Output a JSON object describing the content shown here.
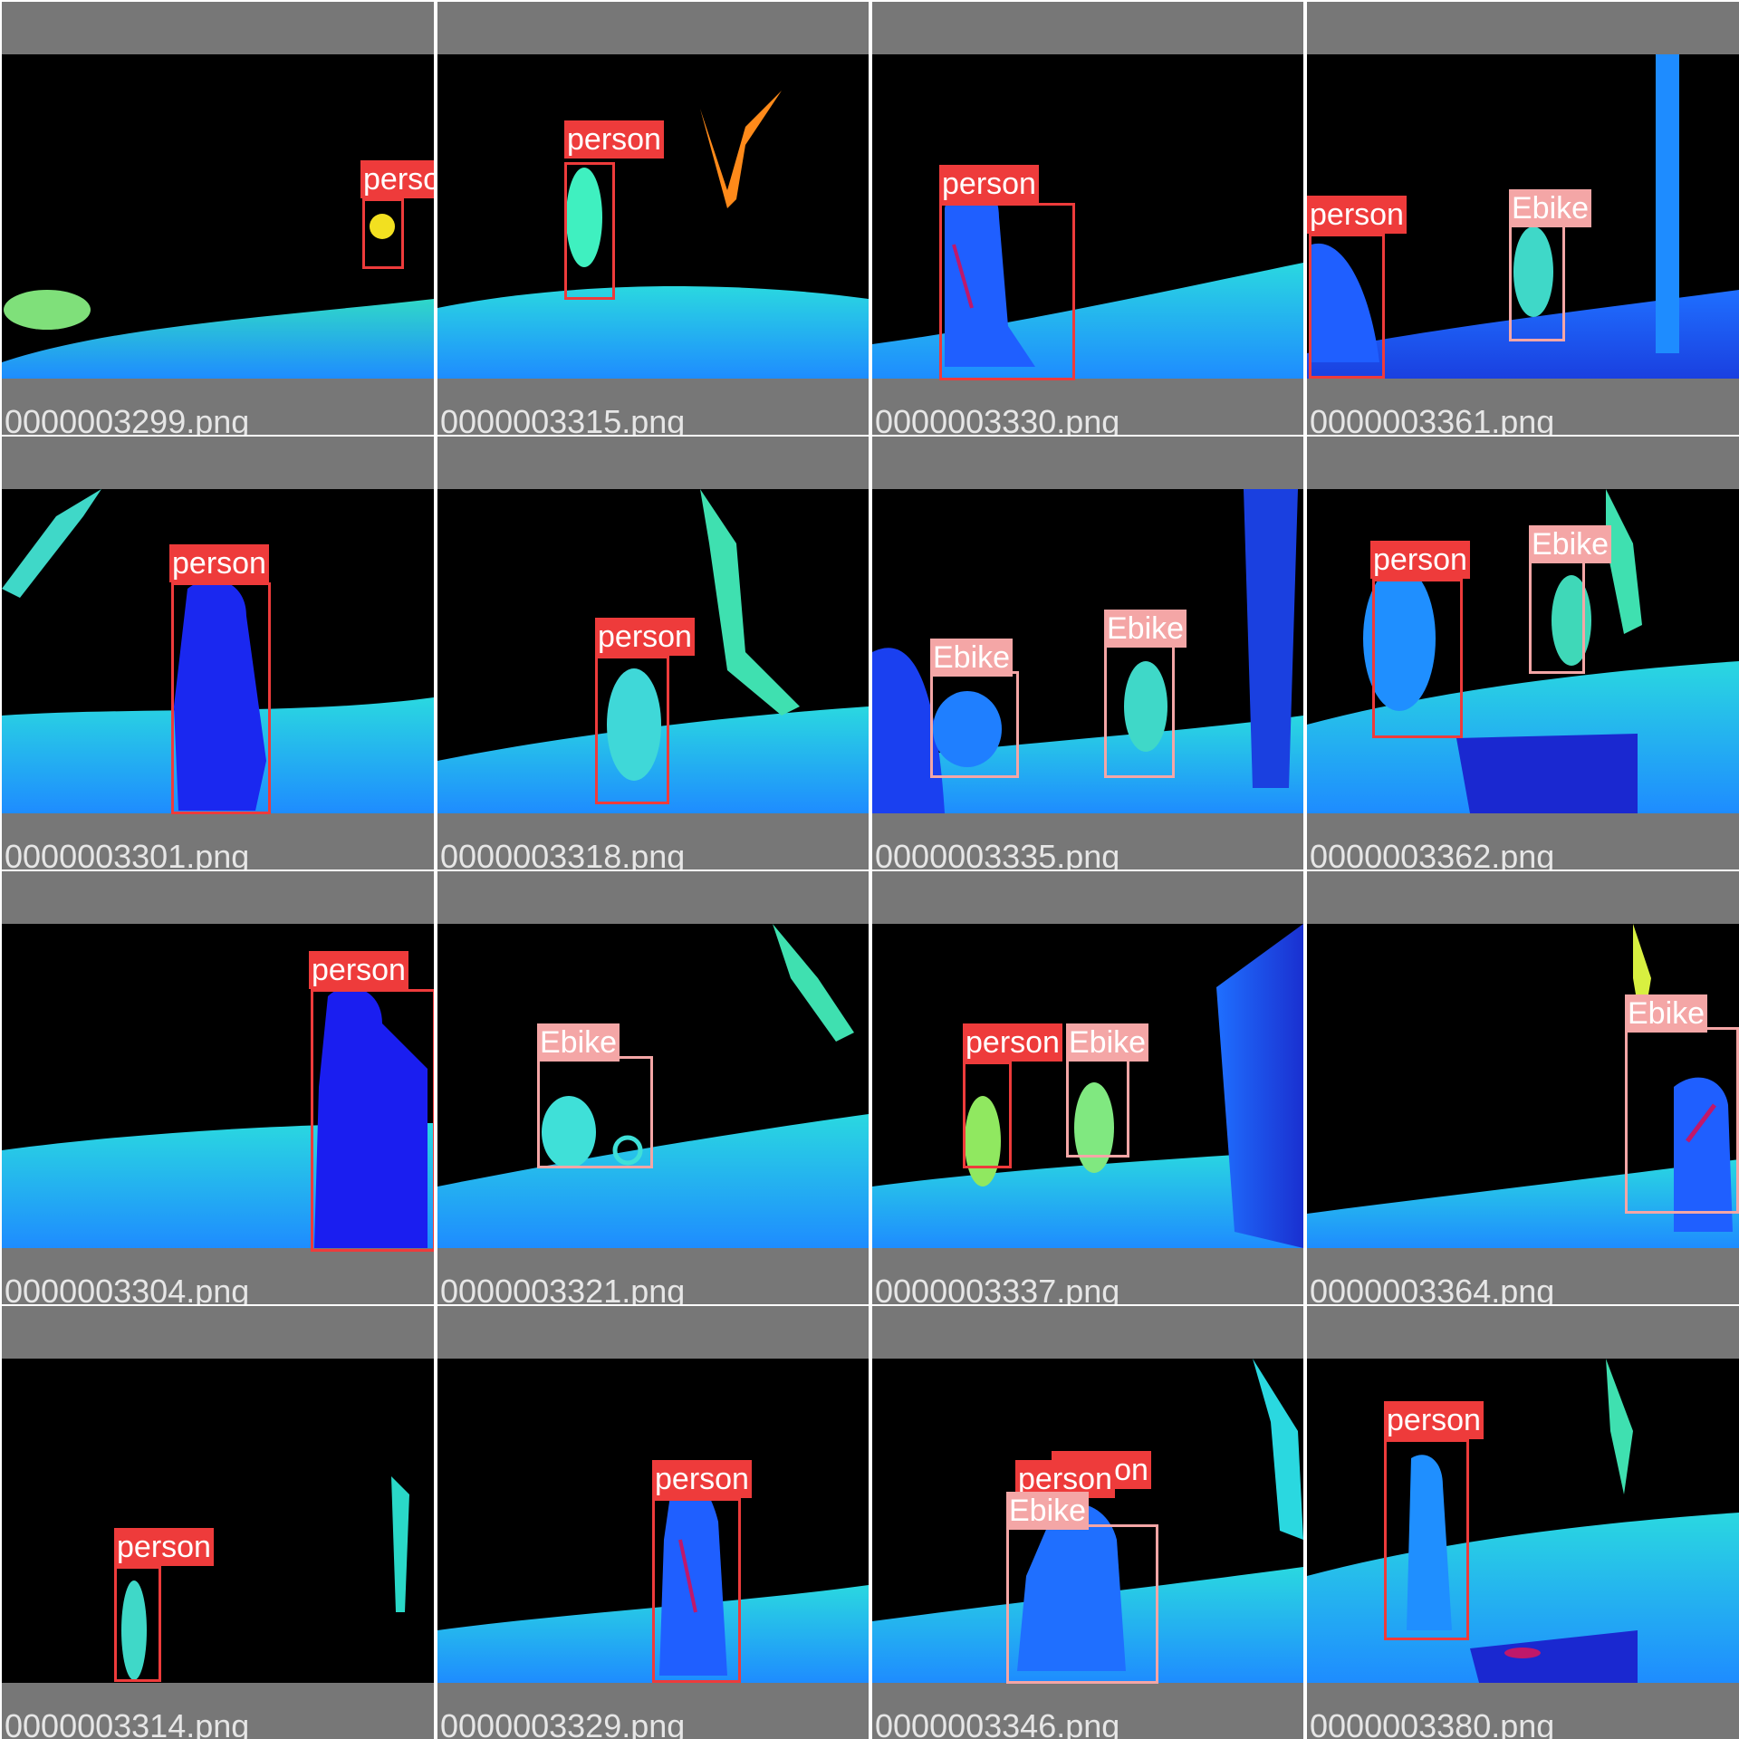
{
  "class_colors": {
    "person": "#ee3b3b",
    "Ebike": "#f4a6a6"
  },
  "tiles": [
    {
      "filename": "0000003299.png",
      "detections": [
        {
          "label": "person"
        }
      ]
    },
    {
      "filename": "0000003315.png",
      "detections": [
        {
          "label": "person"
        }
      ]
    },
    {
      "filename": "0000003330.png",
      "detections": [
        {
          "label": "person"
        }
      ]
    },
    {
      "filename": "0000003361.png",
      "detections": [
        {
          "label": "person"
        },
        {
          "label": "Ebike"
        }
      ]
    },
    {
      "filename": "0000003301.png",
      "detections": [
        {
          "label": "person"
        }
      ]
    },
    {
      "filename": "0000003318.png",
      "detections": [
        {
          "label": "person"
        }
      ]
    },
    {
      "filename": "0000003335.png",
      "detections": [
        {
          "label": "Ebike"
        },
        {
          "label": "Ebike"
        }
      ]
    },
    {
      "filename": "0000003362.png",
      "detections": [
        {
          "label": "person"
        },
        {
          "label": "Ebike"
        }
      ]
    },
    {
      "filename": "0000003304.png",
      "detections": [
        {
          "label": "person"
        }
      ]
    },
    {
      "filename": "0000003321.png",
      "detections": [
        {
          "label": "Ebike"
        }
      ]
    },
    {
      "filename": "0000003337.png",
      "detections": [
        {
          "label": "person"
        },
        {
          "label": "Ebike"
        }
      ]
    },
    {
      "filename": "0000003364.png",
      "detections": [
        {
          "label": "Ebike"
        }
      ]
    },
    {
      "filename": "0000003314.png",
      "detections": [
        {
          "label": "person"
        }
      ]
    },
    {
      "filename": "0000003329.png",
      "detections": [
        {
          "label": "person"
        }
      ]
    },
    {
      "filename": "0000003346.png",
      "detections": [
        {
          "label": "person"
        },
        {
          "label": "person"
        },
        {
          "label": "Ebike"
        }
      ]
    },
    {
      "filename": "0000003380.png",
      "detections": [
        {
          "label": "person"
        }
      ]
    }
  ]
}
